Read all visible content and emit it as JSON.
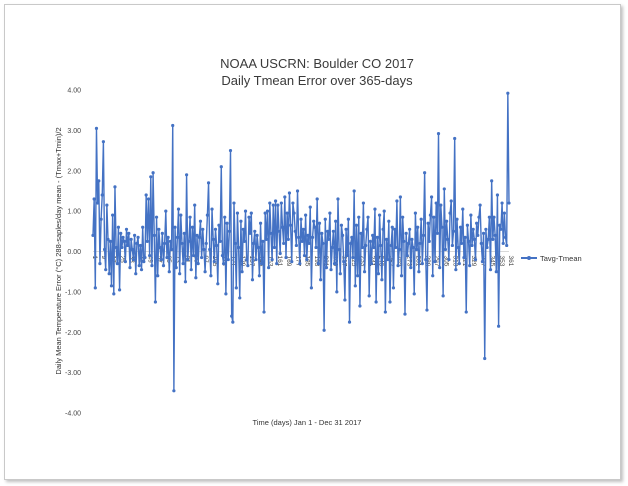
{
  "chart_data": {
    "type": "line",
    "title": "NOAA USCRN: Boulder CO 2017",
    "subtitle": "Daily Tmean Error over 365-days",
    "xlabel": "Time (days) Jan 1 - Dec 31 2017",
    "ylabel": "Daily Mean Temperature Error (°C) 288-saples/day mean - (Tmax+Tmin)/2",
    "ylim": [
      -4,
      4
    ],
    "yticks": [
      "4.00",
      "3.00",
      "2.00",
      "1.00",
      "0.00",
      "-1.00",
      "-2.00",
      "-3.00",
      "-4.00"
    ],
    "x_category_labels": [
      "1",
      "9",
      "17",
      "25",
      "33",
      "41",
      "49",
      "57",
      "65",
      "73",
      "81",
      "89",
      "97",
      "105",
      "113",
      "121",
      "129",
      "137",
      "145",
      "153",
      "161",
      "169",
      "177",
      "185",
      "193",
      "201",
      "209",
      "217",
      "225",
      "233",
      "241",
      "249",
      "257",
      "265",
      "273",
      "281",
      "289",
      "297",
      "305",
      "313",
      "321",
      "329",
      "337",
      "345",
      "353",
      "361"
    ],
    "legend_position": "right",
    "series": [
      {
        "name": "Tavg-Tmean",
        "color": "#4472C4",
        "x_start": 1,
        "values": [
          0.4,
          1.3,
          -0.9,
          3.05,
          1.2,
          1.75,
          -0.3,
          0.8,
          1.4,
          2.72,
          0.05,
          -0.45,
          1.15,
          0.3,
          -0.55,
          0.25,
          -0.85,
          0.9,
          -1.05,
          1.6,
          0.1,
          -0.3,
          0.6,
          -0.95,
          0.45,
          0.1,
          0.35,
          0.25,
          -0.25,
          0.55,
          0.15,
          0.45,
          -0.4,
          0.3,
          0.05,
          -0.2,
          0.4,
          -0.55,
          0.2,
          0.35,
          -0.35,
          0.15,
          -0.45,
          0.6,
          -0.25,
          -0.15,
          1.4,
          0.25,
          1.3,
          -0.1,
          1.85,
          -0.35,
          1.95,
          0.4,
          -1.25,
          0.85,
          -0.6,
          0.55,
          0.1,
          -0.2,
          0.45,
          -0.35,
          0.2,
          1.0,
          -0.15,
          0.35,
          -0.5,
          0.25,
          0.05,
          3.12,
          -3.45,
          0.6,
          -0.4,
          0.35,
          1.05,
          -0.55,
          0.9,
          0.2,
          -0.3,
          0.45,
          -0.75,
          1.9,
          -0.2,
          0.25,
          0.85,
          -0.45,
          0.6,
          -0.1,
          1.15,
          -0.65,
          0.4,
          -0.3,
          0.35,
          0.75,
          -0.15,
          0.55,
          0.05,
          -0.5,
          0.2,
          0.9,
          1.7,
          0.05,
          -0.6,
          1.05,
          0.3,
          -0.25,
          0.55,
          0.15,
          -0.8,
          0.65,
          0.25,
          2.1,
          -0.1,
          -0.3,
          0.85,
          -1.05,
          0.7,
          -0.2,
          0.5,
          2.5,
          -1.6,
          -1.75,
          1.2,
          0.2,
          -0.9,
          0.95,
          0.1,
          -1.15,
          0.75,
          -0.5,
          0.55,
          0.25,
          1.0,
          -0.2,
          -0.35,
          0.85,
          0.45,
          0.95,
          -0.7,
          0.2,
          0.5,
          -0.2,
          0.4,
          0.1,
          -0.6,
          0.7,
          -0.3,
          0.25,
          -1.5,
          0.95,
          0.3,
          1.0,
          -0.4,
          1.2,
          0.45,
          -0.2,
          1.15,
          0.1,
          1.25,
          -0.3,
          1.15,
          0.5,
          -0.05,
          1.2,
          0.6,
          0.2,
          1.35,
          -0.15,
          0.95,
          0.3,
          1.45,
          0.65,
          -0.25,
          1.2,
          0.95,
          0.5,
          0.15,
          1.5,
          0.35,
          -0.3,
          0.8,
          0.25,
          0.55,
          -0.1,
          0.9,
          -0.2,
          0.4,
          0.2,
          1.1,
          -0.9,
          0.35,
          0.75,
          0.6,
          0.1,
          1.3,
          -0.3,
          0.7,
          -0.7,
          0.45,
          0.2,
          -1.95,
          0.8,
          -0.4,
          0.5,
          0.3,
          0.95,
          -0.45,
          0.1,
          0.5,
          -0.3,
          0.75,
          -1.0,
          1.3,
          0.05,
          -0.55,
          0.65,
          0.4,
          -0.25,
          -1.2,
          0.55,
          -0.1,
          0.8,
          -1.75,
          0.2,
          0.35,
          -0.15,
          1.5,
          -0.85,
          0.65,
          -0.6,
          0.85,
          -1.35,
          0.45,
          0.1,
          1.2,
          -0.5,
          0.15,
          0.55,
          0.85,
          -1.1,
          0.25,
          -0.3,
          0.4,
          0.1,
          1.05,
          -1.25,
          0.35,
          -0.55,
          0.9,
          0.15,
          -0.7,
          0.55,
          1.0,
          -1.5,
          0.3,
          -0.2,
          0.75,
          -1.25,
          0.15,
          0.6,
          -0.9,
          0.55,
          0.1,
          1.25,
          -0.35,
          0.05,
          1.35,
          -0.6,
          0.85,
          0.25,
          -1.55,
          0.45,
          -0.1,
          0.2,
          0.55,
          -0.4,
          0.3,
          0.1,
          -1.05,
          0.95,
          0.05,
          0.6,
          -0.5,
          0.2,
          0.8,
          -0.3,
          0.4,
          1.95,
          -0.2,
          -1.45,
          0.7,
          0.25,
          0.9,
          1.35,
          -0.6,
          0.85,
          -0.25,
          1.2,
          0.45,
          2.92,
          -0.4,
          1.15,
          0.6,
          -1.1,
          1.55,
          0.05,
          0.75,
          0.3,
          -0.2,
          0.95,
          1.25,
          0.15,
          0.5,
          2.8,
          -0.45,
          0.8,
          0.1,
          -0.3,
          0.6,
          0.2,
          1.05,
          -0.15,
          0.35,
          -1.5,
          0.65,
          0.25,
          -0.35,
          0.9,
          0.15,
          0.55,
          0.3,
          -0.2,
          0.7,
          0.4,
          0.85,
          1.15,
          0.2,
          -0.25,
          0.45,
          -2.65,
          0.55,
          0.1,
          0.3,
          0.85,
          -0.45,
          1.75,
          0.3,
          0.85,
          0.4,
          -0.5,
          1.4,
          -1.85,
          0.65,
          0.55,
          1.2,
          0.2,
          0.95,
          0.35,
          0.15,
          3.92,
          1.2
        ]
      }
    ]
  }
}
